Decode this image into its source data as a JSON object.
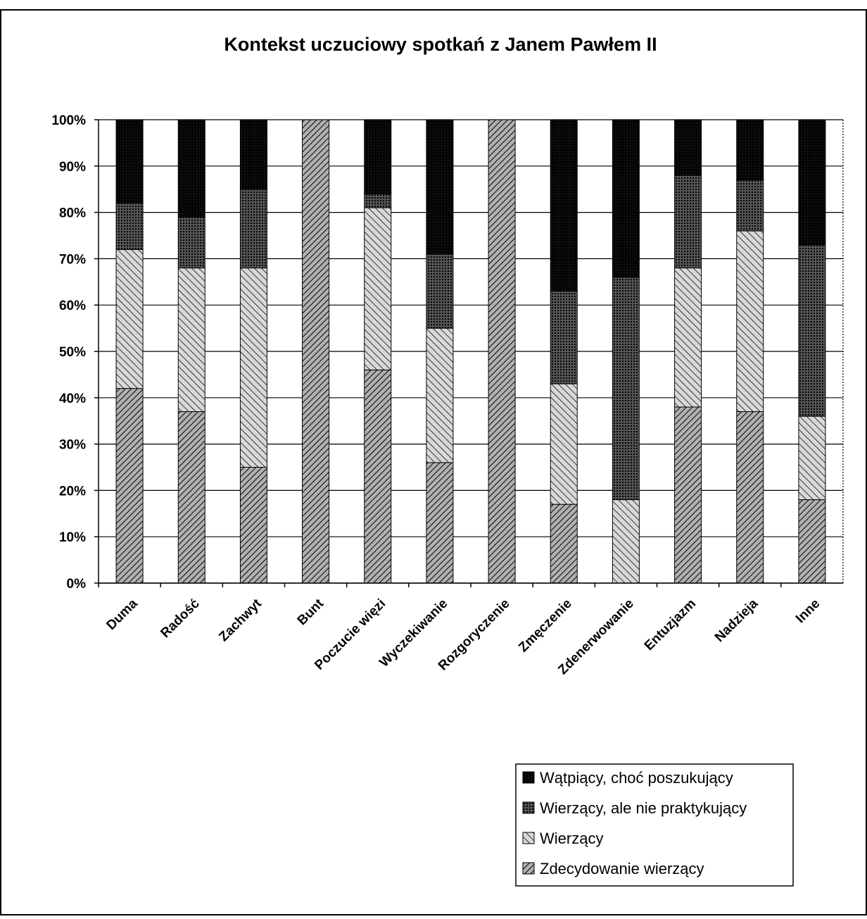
{
  "chart_data": {
    "type": "stacked_bar_100",
    "title": "Kontekst uczuciowy spotkań z Janem Pawłem II",
    "categories": [
      "Duma",
      "Radość",
      "Zachwyt",
      "Bunt",
      "Poczucie więzi",
      "Wyczekiwanie",
      "Rozgoryczenie",
      "Zmęczenie",
      "Zdenerwowanie",
      "Entuzjazm",
      "Nadzieja",
      "Inne"
    ],
    "series": [
      {
        "name": "Zdecydowanie wierzący",
        "color": "#b0b0b0",
        "values": [
          42,
          37,
          25,
          100,
          46,
          26,
          100,
          17,
          0,
          38,
          37,
          18
        ]
      },
      {
        "name": "Wierzący",
        "color": "#d8d8d8",
        "values": [
          30,
          31,
          43,
          0,
          35,
          29,
          0,
          26,
          18,
          30,
          39,
          18
        ]
      },
      {
        "name": "Wierzący, ale nie praktykujący",
        "color": "#555555",
        "values": [
          10,
          11,
          17,
          0,
          3,
          16,
          0,
          20,
          48,
          20,
          11,
          37
        ]
      },
      {
        "name": "Wątpiący, choć poszukujący",
        "color": "#111111",
        "values": [
          18,
          21,
          15,
          0,
          16,
          29,
          0,
          37,
          34,
          12,
          13,
          27
        ]
      }
    ],
    "ylim": [
      0,
      100
    ],
    "yticks": [
      {
        "value": 0,
        "label": "0%"
      },
      {
        "value": 10,
        "label": "10%"
      },
      {
        "value": 20,
        "label": "20%"
      },
      {
        "value": 30,
        "label": "30%"
      },
      {
        "value": 40,
        "label": "40%"
      },
      {
        "value": 50,
        "label": "50%"
      },
      {
        "value": 60,
        "label": "60%"
      },
      {
        "value": 70,
        "label": "70%"
      },
      {
        "value": 80,
        "label": "80%"
      },
      {
        "value": 90,
        "label": "90%"
      },
      {
        "value": 100,
        "label": "100%"
      }
    ],
    "grid": true
  }
}
